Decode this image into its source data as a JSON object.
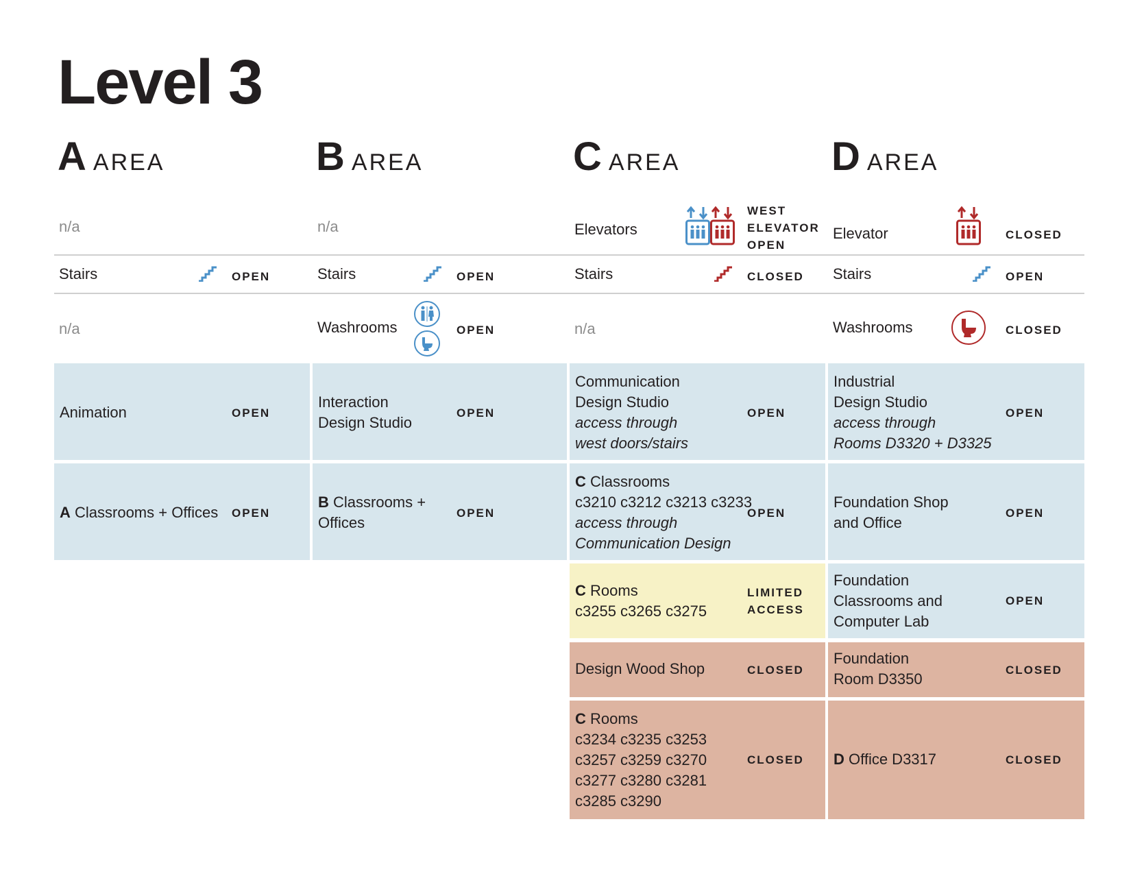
{
  "title": "Level 3",
  "areas": [
    {
      "letter": "A",
      "word": "AREA"
    },
    {
      "letter": "B",
      "word": "AREA"
    },
    {
      "letter": "C",
      "word": "AREA"
    },
    {
      "letter": "D",
      "word": "AREA"
    }
  ],
  "colors": {
    "open": "#d7e6ed",
    "limited": "#f7f2c6",
    "closed": "#ddb4a1",
    "icon_open": "#4a90c8",
    "icon_closed": "#b02a2a"
  },
  "rows": {
    "elevators": {
      "a": {
        "label": "n/a"
      },
      "b": {
        "label": "n/a"
      },
      "c": {
        "label": "Elevators",
        "status": [
          "WEST",
          "ELEVATOR",
          "OPEN"
        ],
        "icons": [
          "elevator-open-icon",
          "elevator-closed-icon"
        ]
      },
      "d": {
        "label": "Elevator",
        "status": "CLOSED",
        "icon": "elevator-closed-icon"
      }
    },
    "stairs": {
      "a": {
        "label": "Stairs",
        "status": "OPEN"
      },
      "b": {
        "label": "Stairs",
        "status": "OPEN"
      },
      "c": {
        "label": "Stairs",
        "status": "CLOSED"
      },
      "d": {
        "label": "Stairs",
        "status": "OPEN"
      }
    },
    "washrooms": {
      "a": {
        "label": "n/a"
      },
      "b": {
        "label": "Washrooms",
        "status": "OPEN"
      },
      "c": {
        "label": "n/a"
      },
      "d": {
        "label": "Washrooms",
        "status": "CLOSED"
      }
    }
  },
  "cells": {
    "a1": {
      "label": "Animation",
      "status": "OPEN"
    },
    "a2": {
      "bold": "A",
      "label": " Classrooms + Offices",
      "status": "OPEN"
    },
    "b1": {
      "line1": "Interaction",
      "line2": "Design Studio",
      "status": "OPEN"
    },
    "b2": {
      "bold": "B",
      "line1": " Classrooms +",
      "line2": "Offices",
      "status": "OPEN"
    },
    "c1": {
      "line1": "Communication",
      "line2": "Design Studio",
      "italic1": "access through",
      "italic2": "west doors/stairs",
      "status": "OPEN"
    },
    "c2": {
      "bold": "C",
      "line1": " Classrooms",
      "line2": "c3210 c3212 c3213 c3233",
      "italic1": "access through",
      "italic2": "Communication Design",
      "status": "OPEN"
    },
    "c3": {
      "bold": "C",
      "line1": " Rooms",
      "line2": "c3255 c3265 c3275",
      "status1": "LIMITED",
      "status2": "ACCESS"
    },
    "c4": {
      "label": "Design Wood Shop",
      "status": "CLOSED"
    },
    "c5": {
      "bold": "C",
      "line1": " Rooms",
      "line2": "c3234 c3235 c3253",
      "line3": "c3257 c3259 c3270",
      "line4": "c3277 c3280 c3281",
      "line5": "c3285 c3290",
      "status": "CLOSED"
    },
    "d1": {
      "line1": "Industrial",
      "line2": "Design Studio",
      "italic1": "access through",
      "italic2": "Rooms D3320 + D3325",
      "status": "OPEN"
    },
    "d2": {
      "line1": "Foundation Shop",
      "line2": "and Office",
      "status": "OPEN"
    },
    "d3": {
      "line1": "Foundation",
      "line2": "Classrooms and",
      "line3": "Computer Lab",
      "status": "OPEN"
    },
    "d4": {
      "line1": "Foundation",
      "line2": "Room D3350",
      "status": "CLOSED"
    },
    "d5": {
      "bold": "D",
      "label": " Office D3317",
      "status": "CLOSED"
    }
  }
}
